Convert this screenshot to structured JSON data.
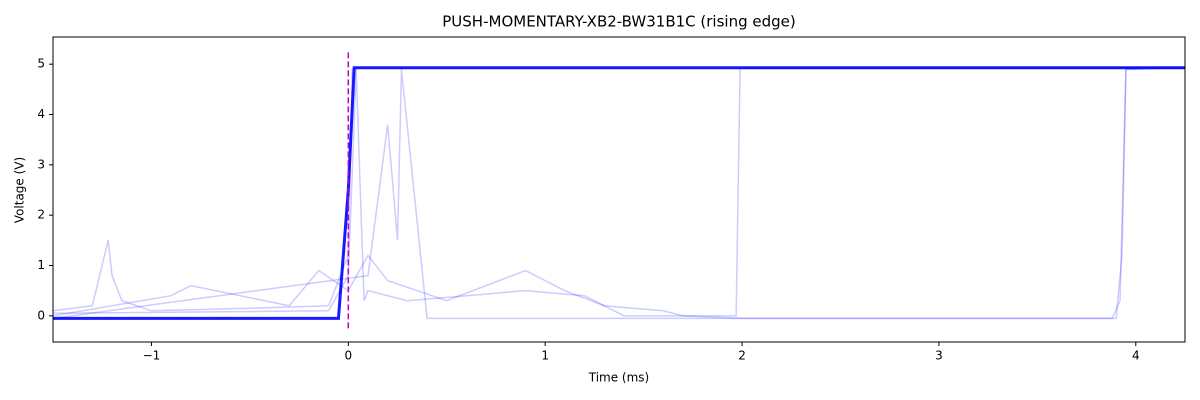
{
  "chart_data": {
    "type": "line",
    "title": "PUSH-MOMENTARY-XB2-BW31B1C (rising edge)",
    "x_label": "Time (ms)",
    "y_label": "Voltage (V)",
    "xlim": [
      -1.5,
      4.25
    ],
    "ylim": [
      -0.52,
      5.54
    ],
    "xticks": [
      {
        "value": -1,
        "label": "−1"
      },
      0,
      1,
      2,
      3,
      4
    ],
    "yticks": [
      0,
      1,
      2,
      3,
      4,
      5
    ],
    "vline": {
      "x": 0,
      "y": [
        -0.25,
        5.25
      ],
      "color": "#bf00bf"
    },
    "series": [
      {
        "color": "#0000ff",
        "opacity": 0.2,
        "x": [
          -1.5,
          -1.3,
          -1.22,
          -1.2,
          -1.15,
          -1.0,
          -0.5,
          -0.1,
          0.0,
          0.02,
          0.05,
          4.25
        ],
        "values": [
          0.1,
          0.2,
          1.5,
          0.8,
          0.3,
          0.1,
          0.15,
          0.2,
          1.2,
          4.9,
          4.93,
          4.93
        ]
      },
      {
        "color": "#0000ff",
        "opacity": 0.2,
        "x": [
          -1.5,
          -0.1,
          0.0,
          0.04,
          0.08,
          0.1,
          0.3,
          0.9,
          1.2,
          1.4,
          1.97,
          1.99,
          2.0,
          4.25
        ],
        "values": [
          0.05,
          0.1,
          0.8,
          4.9,
          0.3,
          0.5,
          0.3,
          0.5,
          0.4,
          0.0,
          0.0,
          4.9,
          4.93,
          4.93
        ]
      },
      {
        "color": "#0000ff",
        "opacity": 0.2,
        "x": [
          -1.5,
          0.1,
          0.2,
          0.25,
          0.27,
          0.4,
          3.88,
          3.92,
          3.95,
          4.25
        ],
        "values": [
          -0.05,
          0.8,
          3.8,
          1.5,
          4.9,
          -0.05,
          -0.05,
          0.3,
          4.9,
          4.93
        ]
      },
      {
        "color": "#0000ff",
        "opacity": 0.2,
        "x": [
          -1.5,
          -0.9,
          -0.8,
          -0.3,
          -0.15,
          0.0,
          0.1,
          0.2,
          0.5,
          0.9,
          1.1,
          1.3,
          1.6,
          1.7,
          2.0,
          3.9,
          3.93,
          3.95,
          4.25
        ],
        "values": [
          0.0,
          0.4,
          0.6,
          0.2,
          0.9,
          0.5,
          1.2,
          0.7,
          0.3,
          0.9,
          0.5,
          0.2,
          0.1,
          0.0,
          -0.05,
          -0.05,
          1.2,
          4.9,
          4.93
        ]
      },
      {
        "color": "#0000ff",
        "opacity": 0.9,
        "x": [
          -1.5,
          -0.05,
          0.0,
          0.03,
          4.25
        ],
        "values": [
          -0.05,
          -0.05,
          2.5,
          4.93,
          4.93
        ]
      }
    ]
  }
}
